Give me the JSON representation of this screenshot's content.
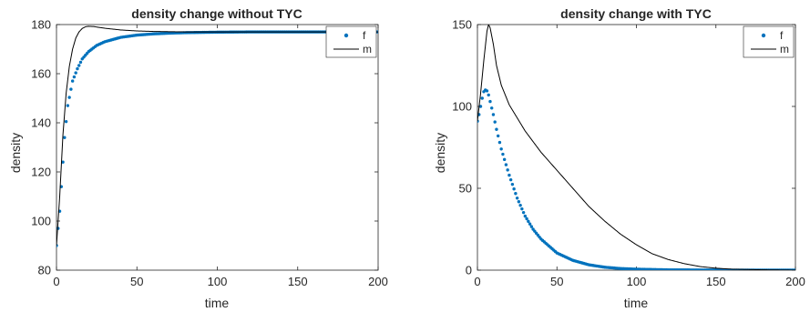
{
  "colors": {
    "f": "#0072BD",
    "m": "#000000",
    "axis": "#262626"
  },
  "chart_data": [
    {
      "type": "line",
      "title": "density change without TYC",
      "xlabel": "time",
      "ylabel": "density",
      "xlim": [
        0,
        200
      ],
      "ylim": [
        80,
        180
      ],
      "xticks": [
        0,
        50,
        100,
        150,
        200
      ],
      "yticks": [
        80,
        100,
        120,
        140,
        160,
        180
      ],
      "grid": false,
      "legend_position": "top-right",
      "series": [
        {
          "name": "f",
          "style": "dots",
          "x": [
            0,
            1,
            2,
            3,
            4,
            5,
            7,
            10,
            13,
            16,
            20,
            25,
            30,
            40,
            50,
            60,
            70,
            80,
            100,
            120,
            150,
            200
          ],
          "y": [
            90,
            97,
            104,
            114,
            124,
            134,
            147,
            157,
            162,
            166,
            169,
            171.5,
            173,
            174.8,
            175.7,
            176.2,
            176.5,
            176.7,
            176.9,
            177,
            177,
            177
          ]
        },
        {
          "name": "m",
          "style": "line",
          "x": [
            0,
            2,
            4,
            6,
            8,
            10,
            12,
            14,
            16,
            18,
            20,
            23,
            26,
            30,
            40,
            50,
            60,
            80,
            100,
            200
          ],
          "y": [
            90,
            110,
            135,
            152,
            163,
            170,
            174.5,
            177,
            178.4,
            179.1,
            179.3,
            179.2,
            178.9,
            178.5,
            177.8,
            177.4,
            177.2,
            177,
            177,
            177
          ]
        }
      ]
    },
    {
      "type": "line",
      "title": "density change with TYC",
      "xlabel": "time",
      "ylabel": "density",
      "xlim": [
        0,
        200
      ],
      "ylim": [
        0,
        150
      ],
      "xticks": [
        0,
        50,
        100,
        150,
        200
      ],
      "yticks": [
        0,
        50,
        100,
        150
      ],
      "grid": false,
      "legend_position": "top-right",
      "series": [
        {
          "name": "f",
          "style": "dots",
          "x": [
            0,
            1,
            2,
            3,
            4,
            5,
            6,
            7,
            8,
            10,
            12,
            15,
            20,
            25,
            30,
            35,
            40,
            50,
            60,
            70,
            80,
            90,
            100,
            120,
            140,
            160,
            180,
            200
          ],
          "y": [
            91,
            95,
            100,
            105,
            109,
            110,
            109.5,
            107,
            103,
            95,
            86,
            74,
            58,
            44,
            33,
            25,
            19,
            10.5,
            6,
            3.3,
            1.8,
            1.0,
            0.6,
            0.2,
            0.1,
            0.05,
            0,
            0
          ]
        },
        {
          "name": "m",
          "style": "line",
          "x": [
            0,
            2,
            4,
            6,
            7,
            8,
            10,
            12,
            15,
            20,
            30,
            40,
            50,
            60,
            70,
            80,
            90,
            100,
            110,
            120,
            130,
            140,
            150,
            160,
            180,
            200
          ],
          "y": [
            91,
            108,
            128,
            146,
            150,
            148,
            138,
            125,
            113,
            101,
            85,
            72,
            61,
            50,
            39,
            30,
            22,
            15.5,
            10,
            6.5,
            4,
            2.2,
            1.2,
            0.6,
            0.2,
            0
          ]
        }
      ]
    }
  ]
}
